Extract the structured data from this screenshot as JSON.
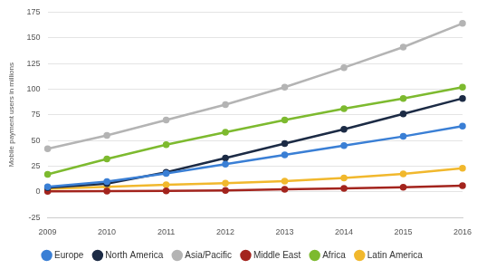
{
  "chart_data": {
    "type": "line",
    "y_label": "Mobile payment users in millions",
    "categories": [
      "2009",
      "2010",
      "2011",
      "2012",
      "2013",
      "2014",
      "2015",
      "2016"
    ],
    "series": [
      {
        "name": "Europe",
        "color": "#3a7fd5",
        "values": [
          5,
          10,
          18,
          27,
          36,
          45,
          54,
          64
        ]
      },
      {
        "name": "North America",
        "color": "#1c2b45",
        "values": [
          4,
          8,
          19,
          33,
          47,
          61,
          76,
          91
        ]
      },
      {
        "name": "Asia/Pacific",
        "color": "#b4b4b4",
        "values": [
          42,
          55,
          70,
          85,
          102,
          121,
          141,
          164
        ]
      },
      {
        "name": "Middle East",
        "color": "#a3241d",
        "values": [
          0.5,
          0.7,
          1,
          1.5,
          2.5,
          3.5,
          4.5,
          6
        ]
      },
      {
        "name": "Africa",
        "color": "#7dba2f",
        "values": [
          17,
          32,
          46,
          58,
          70,
          81,
          91,
          102
        ]
      },
      {
        "name": "Latin America",
        "color": "#f1b82d",
        "values": [
          3,
          5,
          7,
          8.5,
          10.5,
          13.5,
          17.5,
          23
        ]
      }
    ],
    "ylim": [
      -25,
      175
    ],
    "yticks": [
      -25,
      0,
      25,
      50,
      75,
      100,
      125,
      150,
      175
    ],
    "grid": true,
    "legend": "bottom",
    "marker": "circle"
  }
}
